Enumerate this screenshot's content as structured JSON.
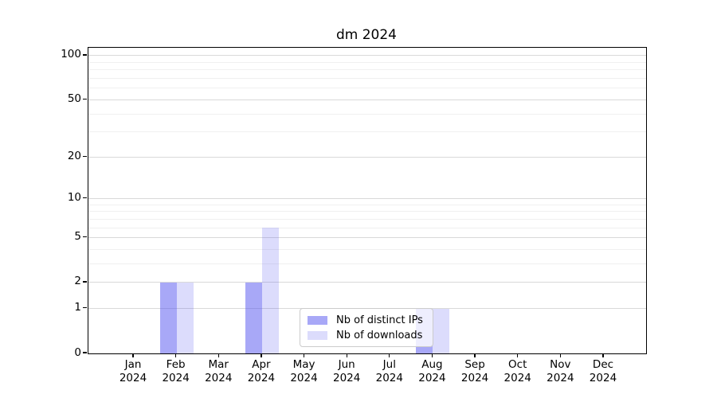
{
  "figure": {
    "title": "dm 2024"
  },
  "chart_data": {
    "type": "bar",
    "title": "dm 2024",
    "categories": [
      "Jan 2024",
      "Feb 2024",
      "Mar 2024",
      "Apr 2024",
      "May 2024",
      "Jun 2024",
      "Jul 2024",
      "Aug 2024",
      "Sep 2024",
      "Oct 2024",
      "Nov 2024",
      "Dec 2024"
    ],
    "series": [
      {
        "name": "Nb of distinct IPs",
        "color": "#a8a8f7",
        "fill": "rgba(81,81,240,0.5)",
        "values": [
          0,
          2,
          0,
          2,
          0,
          0,
          0,
          1,
          0,
          0,
          0,
          0
        ]
      },
      {
        "name": "Nb of downloads",
        "color": "#dcdcfc",
        "fill": "rgba(81,81,240,0.2)",
        "values": [
          0,
          2,
          0,
          6,
          0,
          0,
          0,
          1,
          0,
          0,
          0,
          0
        ]
      }
    ],
    "xlabel": "",
    "ylabel": "",
    "yscale": "log10(1+x)",
    "ylim": [
      0,
      116
    ],
    "yticks": [
      0,
      1,
      2,
      5,
      10,
      20,
      50,
      100
    ],
    "ytick_labels": [
      "0",
      "1",
      "2",
      "5",
      "10",
      "20",
      "50",
      "100"
    ],
    "yticks_minor": [
      3,
      4,
      6,
      7,
      8,
      9,
      30,
      40,
      60,
      70,
      80,
      90
    ],
    "grid": true,
    "legend": {
      "position": "lower center-right",
      "items": [
        "Nb of distinct IPs",
        "Nb of downloads"
      ]
    }
  },
  "colors": {
    "grid_major": "#d9d9d9",
    "grid_minor": "#f0f0f0",
    "axis": "#000000",
    "legend_border": "#cccccc",
    "background": "#ffffff"
  }
}
